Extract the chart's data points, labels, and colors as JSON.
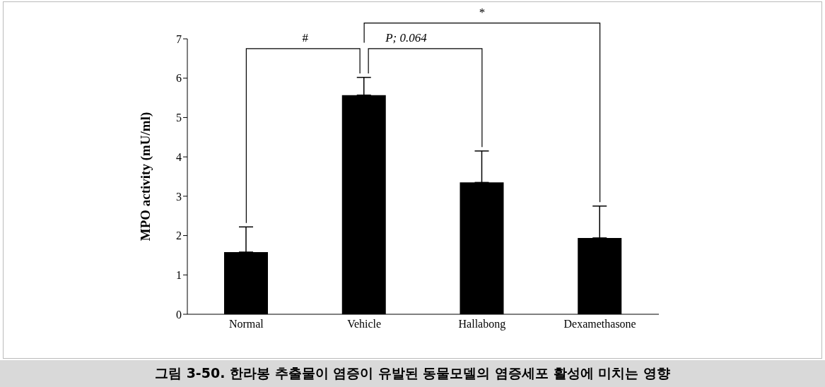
{
  "chart_data": {
    "type": "bar",
    "title": "그림 3-50. 한라봉 추출물이 염증이 유발된 동물모델의 염증세포 활성에 미치는 영향",
    "ylabel": "MPO activity (mU/ml)",
    "categories": [
      "Normal",
      "Vehicle",
      "Hallabong",
      "Dexamethasone"
    ],
    "values": [
      1.58,
      5.57,
      3.35,
      1.94
    ],
    "errors": [
      [
        1.58,
        2.22
      ],
      [
        5.57,
        6.02
      ],
      [
        3.35,
        4.15
      ],
      [
        1.94,
        2.75
      ]
    ],
    "color": "#000000",
    "ylim": [
      0,
      7
    ],
    "yticks": [
      0,
      1,
      2,
      3,
      4,
      5,
      6,
      7
    ],
    "annotations": [
      "#",
      "P; 0.064",
      "*"
    ]
  }
}
